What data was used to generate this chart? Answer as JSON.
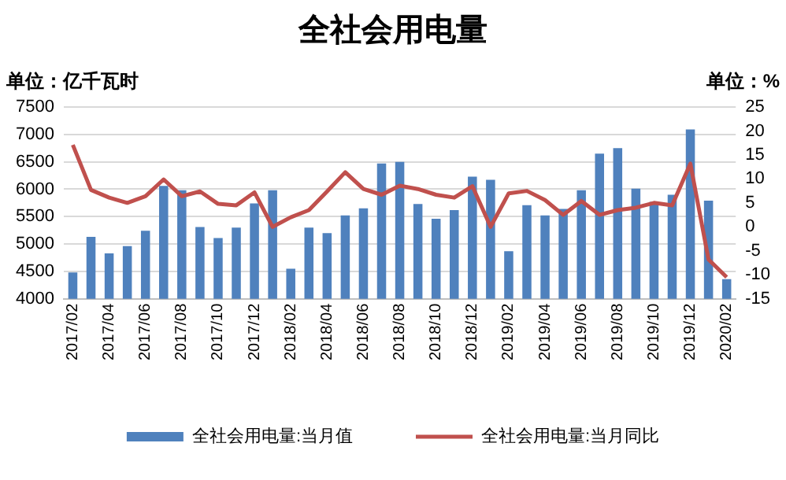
{
  "chart_data": {
    "type": "bar",
    "title": "全社会用电量",
    "ylabel": "单位：亿千瓦时",
    "y2label": "单位：%",
    "categories": [
      "2017/02",
      null,
      "2017/04",
      null,
      "2017/06",
      null,
      "2017/08",
      null,
      "2017/10",
      null,
      "2017/12",
      null,
      "2018/02",
      null,
      "2018/04",
      null,
      "2018/06",
      null,
      "2018/08",
      null,
      "2018/10",
      null,
      "2018/12",
      null,
      "2019/02",
      null,
      "2019/04",
      null,
      "2019/06",
      null,
      "2019/08",
      null,
      "2019/10",
      null,
      "2019/12",
      null,
      "2020/02"
    ],
    "series": [
      {
        "name": "全社会用电量:当月值",
        "color": "#4f81bd",
        "values": [
          4480,
          5130,
          4830,
          4960,
          5240,
          6060,
          5980,
          5310,
          5110,
          5300,
          5740,
          5980,
          4550,
          5300,
          5200,
          5520,
          5650,
          6470,
          6500,
          5730,
          5460,
          5620,
          6230,
          6170,
          4870,
          5710,
          5520,
          5640,
          5980,
          6650,
          6750,
          6010,
          5770,
          5900,
          7090,
          5790,
          4360
        ]
      },
      {
        "name": "全社会用电量:当月同比",
        "type": "line",
        "axis": "y2",
        "color": "#c0504d",
        "values": [
          17.1,
          7.7,
          6.1,
          5.0,
          6.4,
          9.9,
          6.4,
          7.4,
          4.8,
          4.5,
          7.2,
          0.0,
          2.0,
          3.5,
          7.4,
          11.4,
          7.9,
          6.7,
          8.6,
          7.9,
          6.7,
          6.1,
          8.5,
          0.0,
          7.0,
          7.5,
          5.6,
          2.5,
          5.4,
          2.5,
          3.5,
          4.0,
          5.0,
          4.5,
          13.2,
          -6.8,
          -10.5
        ]
      }
    ],
    "ylim": [
      4000,
      7500
    ],
    "yticks": [
      4000,
      4500,
      5000,
      5500,
      6000,
      6500,
      7000,
      7500
    ],
    "y2lim": [
      -15,
      25
    ],
    "y2ticks": [
      -15,
      -10,
      -5,
      0,
      5,
      10,
      15,
      20,
      25
    ],
    "grid": "y",
    "legend": "bottom",
    "marker": "none",
    "line_style": "solid"
  }
}
